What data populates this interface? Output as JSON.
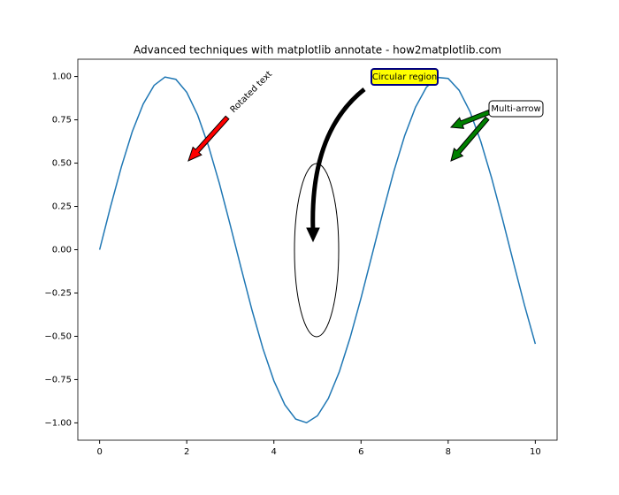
{
  "chart_data": {
    "type": "line",
    "title": "Advanced techniques with matplotlib annotate - how2matplotlib.com",
    "x": [
      0,
      0.25,
      0.5,
      0.75,
      1,
      1.25,
      1.5,
      1.75,
      2,
      2.25,
      2.5,
      2.75,
      3,
      3.25,
      3.5,
      3.75,
      4,
      4.25,
      4.5,
      4.75,
      5,
      5.25,
      5.5,
      5.75,
      6,
      6.25,
      6.5,
      6.75,
      7,
      7.25,
      7.5,
      7.75,
      8,
      8.25,
      8.5,
      8.75,
      9,
      9.25,
      9.5,
      9.75,
      10
    ],
    "values": [
      0,
      0.247,
      0.479,
      0.682,
      0.841,
      0.949,
      0.997,
      0.984,
      0.909,
      0.778,
      0.598,
      0.382,
      0.141,
      -0.108,
      -0.351,
      -0.572,
      -0.757,
      -0.895,
      -0.978,
      -0.999,
      -0.959,
      -0.859,
      -0.706,
      -0.508,
      -0.279,
      -0.033,
      0.215,
      0.45,
      0.657,
      0.823,
      0.938,
      0.995,
      0.989,
      0.921,
      0.798,
      0.624,
      0.412,
      0.174,
      -0.075,
      -0.319,
      -0.544
    ],
    "color": "#1f77b4",
    "xlim": [
      -0.5,
      10.5
    ],
    "xticks": [
      0,
      2,
      4,
      6,
      8,
      10
    ],
    "ylim": [
      -1.1,
      1.1
    ],
    "yticks": [
      {
        "value": -1,
        "label": "−1.00"
      },
      {
        "value": -0.75,
        "label": "−0.75"
      },
      {
        "value": -0.5,
        "label": "−0.50"
      },
      {
        "value": -0.25,
        "label": "−0.25"
      },
      {
        "value": 0,
        "label": "0.00"
      },
      {
        "value": 0.25,
        "label": "0.25"
      },
      {
        "value": 0.5,
        "label": "0.50"
      },
      {
        "value": 0.75,
        "label": "0.75"
      },
      {
        "value": 1,
        "label": "1.00"
      }
    ],
    "annotations": [
      "Rotated text",
      "Circular region",
      "Multi-arrow"
    ]
  }
}
